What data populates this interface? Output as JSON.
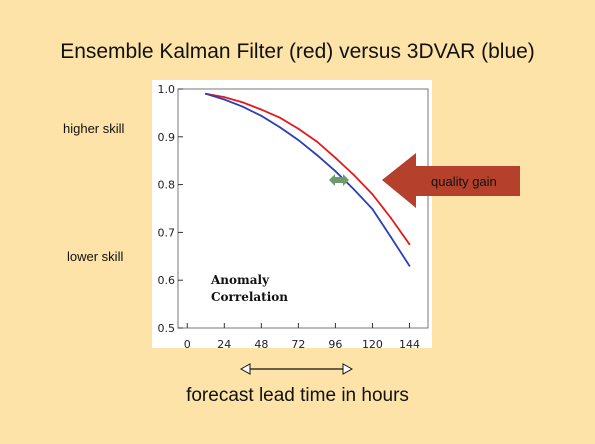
{
  "slide": {
    "title": "Ensemble Kalman Filter (red) versus 3DVAR (blue)",
    "higher_skill": "higher skill",
    "lower_skill": "lower skill",
    "x_caption": "forecast lead time in hours",
    "arrow_label": "quality gain"
  },
  "colors": {
    "background": "#fde3a7",
    "red_series": "#e31a1c",
    "blue_series": "#2b3fb8",
    "arrow": "#b5402b",
    "small_arrow": "#6f9b6a"
  },
  "chart_data": {
    "type": "line",
    "title": "",
    "inset_label": [
      "Anomaly",
      "Correlation"
    ],
    "xlabel": "",
    "ylabel": "",
    "x_ticks": [
      0,
      24,
      48,
      72,
      96,
      120,
      144
    ],
    "x_tick_labels": [
      "0",
      "24",
      "48",
      "72",
      "96",
      "120",
      "144"
    ],
    "y_ticks": [
      0.5,
      0.6,
      0.7,
      0.8,
      0.9,
      1.0
    ],
    "y_tick_labels": [
      "0.5",
      "0.6",
      "0.7",
      "0.8",
      "0.9",
      "1.0"
    ],
    "xlim": [
      -6,
      156
    ],
    "ylim": [
      0.5,
      1.0
    ],
    "grid": false,
    "series": [
      {
        "color": "red",
        "x": [
          12,
          24,
          36,
          48,
          60,
          72,
          84,
          96,
          108,
          120,
          132,
          144
        ],
        "y": [
          0.99,
          0.983,
          0.972,
          0.957,
          0.94,
          0.917,
          0.89,
          0.856,
          0.82,
          0.78,
          0.73,
          0.675
        ]
      },
      {
        "color": "blue",
        "x": [
          12,
          24,
          36,
          48,
          60,
          72,
          84,
          96,
          108,
          120,
          132,
          144
        ],
        "y": [
          0.99,
          0.978,
          0.963,
          0.944,
          0.92,
          0.893,
          0.862,
          0.828,
          0.79,
          0.749,
          0.69,
          0.63
        ]
      }
    ]
  }
}
